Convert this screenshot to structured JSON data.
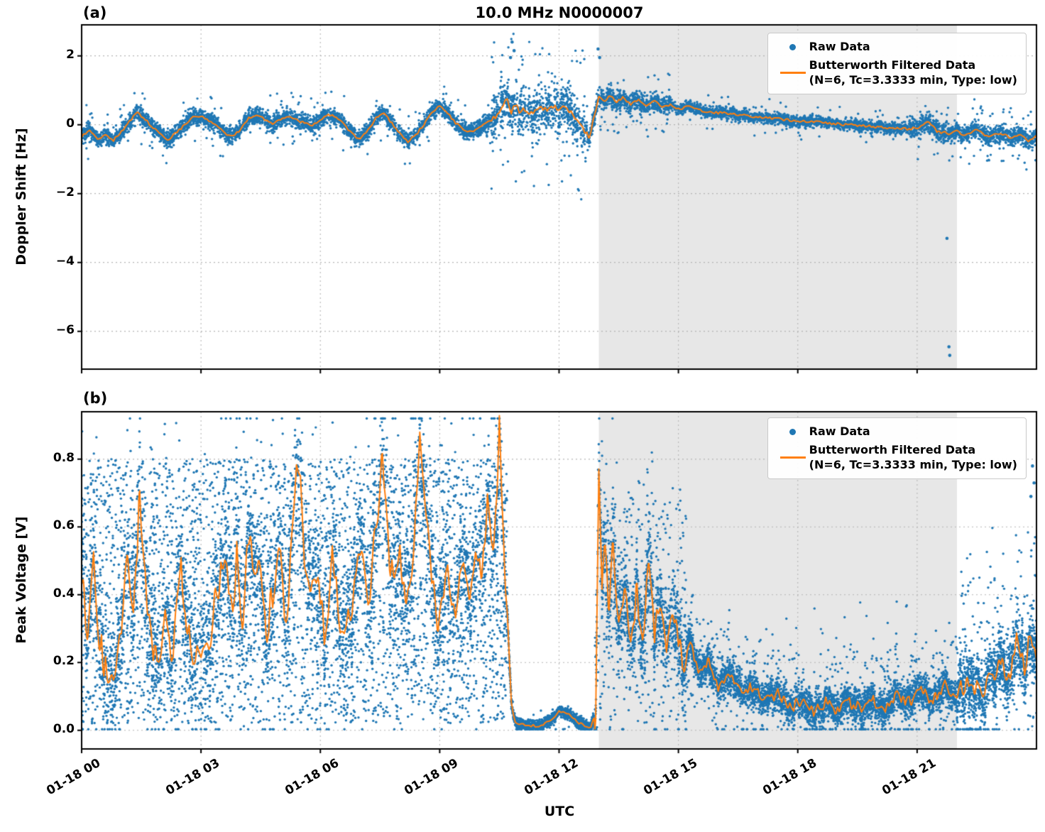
{
  "figure": {
    "title": "10.0 MHz N0000007",
    "xlabel": "UTC",
    "panel_a_label": "(a)",
    "panel_b_label": "(b)",
    "legend": {
      "raw_label": "Raw Data",
      "filtered_label": "Butterworth Filtered Data",
      "filtered_sublabel": "(N=6, Tc=3.3333 min, Type: low)"
    },
    "colors": {
      "raw": "#1f77b4",
      "filtered": "#ff7f0e",
      "shade": "#e7e7e7",
      "grid": "#b5b5b5",
      "spine": "#000000"
    }
  },
  "chart_data": [
    {
      "id": "doppler",
      "type": "scatter",
      "panel": "(a)",
      "title": "10.0 MHz N0000007",
      "ylabel": "Doppler Shift [Hz]",
      "ylim": [
        -7.1,
        2.9
      ],
      "raw_value_range": [
        -7.0,
        2.82
      ],
      "yticks": {
        "values": [
          2,
          0,
          -2,
          -4,
          -6
        ],
        "labels": [
          "2",
          "0",
          "−2",
          "−4",
          "−6"
        ]
      },
      "xlim_hours": [
        0,
        24
      ],
      "xticks": {
        "hours": [
          0,
          3,
          6,
          9,
          12,
          15,
          18,
          21
        ],
        "labels": [
          "01-18 00",
          "01-18 03",
          "01-18 06",
          "01-18 09",
          "01-18 12",
          "01-18 15",
          "01-18 18",
          "01-18 21"
        ]
      },
      "shaded_region_hours": [
        13,
        22
      ],
      "series": [
        {
          "name": "Raw Data",
          "type": "scatter",
          "color": "#1f77b4"
        },
        {
          "name": "Butterworth Filtered Data (N=6, Tc=3.3333 min, Type: low)",
          "type": "line",
          "color": "#ff7f0e"
        }
      ],
      "filtered_keypoints": [
        [
          0,
          -0.35
        ],
        [
          0.2,
          -0.15
        ],
        [
          0.4,
          -0.4
        ],
        [
          0.6,
          -0.3
        ],
        [
          0.8,
          -0.45
        ],
        [
          1.0,
          -0.2
        ],
        [
          1.2,
          0.1
        ],
        [
          1.4,
          0.35
        ],
        [
          1.6,
          0.15
        ],
        [
          1.8,
          -0.1
        ],
        [
          2.0,
          -0.3
        ],
        [
          2.2,
          -0.45
        ],
        [
          2.4,
          -0.2
        ],
        [
          2.6,
          0.0
        ],
        [
          2.8,
          0.2
        ],
        [
          3.0,
          0.25
        ],
        [
          3.2,
          0.1
        ],
        [
          3.4,
          -0.05
        ],
        [
          3.6,
          -0.25
        ],
        [
          3.8,
          -0.35
        ],
        [
          4.0,
          -0.15
        ],
        [
          4.2,
          0.2
        ],
        [
          4.4,
          0.3
        ],
        [
          4.6,
          0.15
        ],
        [
          4.8,
          0.05
        ],
        [
          5.0,
          0.15
        ],
        [
          5.2,
          0.25
        ],
        [
          5.4,
          0.15
        ],
        [
          5.6,
          0.05
        ],
        [
          5.8,
          0.0
        ],
        [
          6.0,
          0.15
        ],
        [
          6.2,
          0.3
        ],
        [
          6.4,
          0.2
        ],
        [
          6.6,
          0.0
        ],
        [
          6.8,
          -0.25
        ],
        [
          7.0,
          -0.45
        ],
        [
          7.2,
          -0.15
        ],
        [
          7.4,
          0.2
        ],
        [
          7.6,
          0.3
        ],
        [
          7.8,
          0.05
        ],
        [
          8.0,
          -0.25
        ],
        [
          8.2,
          -0.5
        ],
        [
          8.4,
          -0.3
        ],
        [
          8.6,
          0.0
        ],
        [
          8.8,
          0.35
        ],
        [
          9.0,
          0.55
        ],
        [
          9.2,
          0.35
        ],
        [
          9.4,
          0.05
        ],
        [
          9.6,
          -0.15
        ],
        [
          9.8,
          -0.2
        ],
        [
          10.0,
          -0.1
        ],
        [
          10.2,
          0.05
        ],
        [
          10.4,
          0.2
        ],
        [
          10.55,
          0.45
        ],
        [
          10.7,
          0.75
        ],
        [
          10.8,
          0.35
        ],
        [
          10.9,
          0.65
        ],
        [
          11.0,
          0.3
        ],
        [
          11.1,
          0.55
        ],
        [
          11.25,
          0.2
        ],
        [
          11.4,
          0.45
        ],
        [
          11.55,
          0.6
        ],
        [
          11.7,
          0.35
        ],
        [
          11.85,
          0.55
        ],
        [
          12.0,
          0.4
        ],
        [
          12.15,
          0.55
        ],
        [
          12.3,
          0.35
        ],
        [
          12.45,
          0.15
        ],
        [
          12.6,
          -0.1
        ],
        [
          12.75,
          -0.35
        ],
        [
          12.9,
          0.3
        ],
        [
          13.0,
          0.85
        ],
        [
          13.15,
          0.7
        ],
        [
          13.3,
          0.85
        ],
        [
          13.45,
          0.65
        ],
        [
          13.6,
          0.8
        ],
        [
          13.8,
          0.6
        ],
        [
          14.0,
          0.7
        ],
        [
          14.2,
          0.55
        ],
        [
          14.4,
          0.7
        ],
        [
          14.6,
          0.5
        ],
        [
          14.8,
          0.6
        ],
        [
          15.0,
          0.45
        ],
        [
          15.3,
          0.55
        ],
        [
          15.6,
          0.4
        ],
        [
          16.0,
          0.35
        ],
        [
          16.4,
          0.3
        ],
        [
          16.8,
          0.25
        ],
        [
          17.2,
          0.2
        ],
        [
          17.6,
          0.15
        ],
        [
          18.0,
          0.12
        ],
        [
          18.4,
          0.08
        ],
        [
          18.8,
          0.05
        ],
        [
          19.2,
          0.0
        ],
        [
          19.6,
          -0.03
        ],
        [
          20.0,
          -0.07
        ],
        [
          20.4,
          -0.1
        ],
        [
          20.8,
          -0.13
        ],
        [
          21.1,
          -0.05
        ],
        [
          21.3,
          0.1
        ],
        [
          21.5,
          -0.2
        ],
        [
          21.8,
          -0.25
        ],
        [
          22.0,
          -0.2
        ],
        [
          22.2,
          -0.3
        ],
        [
          22.5,
          -0.15
        ],
        [
          22.8,
          -0.35
        ],
        [
          23.1,
          -0.25
        ],
        [
          23.4,
          -0.4
        ],
        [
          23.6,
          -0.25
        ],
        [
          23.8,
          -0.5
        ],
        [
          24,
          -0.3
        ]
      ],
      "line_wiggle_segments": [
        [
          0,
          10.3,
          0.04
        ],
        [
          10.3,
          12.9,
          0.1
        ],
        [
          12.9,
          24,
          0.04
        ]
      ],
      "raw_noise_segments": [
        [
          0,
          10.3,
          0.26,
          0.04,
          0,
          0,
          0
        ],
        [
          10.3,
          12.7,
          0.7,
          0.12,
          0,
          0,
          0
        ],
        [
          12.7,
          14.8,
          0.3,
          0.06,
          0,
          0,
          0
        ],
        [
          14.8,
          20.8,
          0.17,
          0.04,
          0,
          0,
          0
        ],
        [
          20.8,
          24,
          0.28,
          0.08,
          0,
          0,
          0
        ]
      ],
      "raw_outliers": [
        [
          10.82,
          2.4
        ],
        [
          10.87,
          2.15
        ],
        [
          10.78,
          1.95
        ],
        [
          12.98,
          2.2
        ],
        [
          13.02,
          1.95
        ],
        [
          21.75,
          -3.3
        ],
        [
          21.8,
          -6.45
        ],
        [
          21.82,
          -6.7
        ]
      ],
      "raw_point_count": 9000
    },
    {
      "id": "voltage",
      "type": "scatter",
      "panel": "(b)",
      "title": "",
      "ylabel": "Peak Voltage [V]",
      "ylim": [
        -0.055,
        0.94
      ],
      "raw_value_range": [
        0.003,
        0.92
      ],
      "yticks": {
        "values": [
          0.0,
          0.2,
          0.4,
          0.6,
          0.8
        ],
        "labels": [
          "0.0",
          "0.2",
          "0.4",
          "0.6",
          "0.8"
        ]
      },
      "xlim_hours": [
        0,
        24
      ],
      "xticks": {
        "hours": [
          0,
          3,
          6,
          9,
          12,
          15,
          18,
          21
        ],
        "labels": [
          "01-18 00",
          "01-18 03",
          "01-18 06",
          "01-18 09",
          "01-18 12",
          "01-18 15",
          "01-18 18",
          "01-18 21"
        ]
      },
      "shaded_region_hours": [
        13,
        22
      ],
      "series": [
        {
          "name": "Raw Data",
          "type": "scatter",
          "color": "#1f77b4"
        },
        {
          "name": "Butterworth Filtered Data (N=6, Tc=3.3333 min, Type: low)",
          "type": "line",
          "color": "#ff7f0e"
        }
      ],
      "filtered_keypoints": [
        [
          0,
          0.45
        ],
        [
          0.15,
          0.3
        ],
        [
          0.3,
          0.5
        ],
        [
          0.45,
          0.25
        ],
        [
          0.6,
          0.18
        ],
        [
          0.8,
          0.12
        ],
        [
          1.0,
          0.3
        ],
        [
          1.15,
          0.55
        ],
        [
          1.3,
          0.3
        ],
        [
          1.45,
          0.7
        ],
        [
          1.6,
          0.45
        ],
        [
          1.75,
          0.25
        ],
        [
          1.9,
          0.18
        ],
        [
          2.1,
          0.3
        ],
        [
          2.3,
          0.22
        ],
        [
          2.5,
          0.5
        ],
        [
          2.65,
          0.28
        ],
        [
          2.8,
          0.22
        ],
        [
          3.0,
          0.18
        ],
        [
          3.2,
          0.28
        ],
        [
          3.4,
          0.4
        ],
        [
          3.6,
          0.55
        ],
        [
          3.75,
          0.35
        ],
        [
          3.9,
          0.5
        ],
        [
          4.05,
          0.3
        ],
        [
          4.2,
          0.6
        ],
        [
          4.35,
          0.4
        ],
        [
          4.5,
          0.52
        ],
        [
          4.65,
          0.3
        ],
        [
          4.8,
          0.42
        ],
        [
          5.0,
          0.55
        ],
        [
          5.15,
          0.3
        ],
        [
          5.3,
          0.65
        ],
        [
          5.45,
          0.8
        ],
        [
          5.6,
          0.5
        ],
        [
          5.75,
          0.35
        ],
        [
          5.9,
          0.45
        ],
        [
          6.1,
          0.3
        ],
        [
          6.3,
          0.5
        ],
        [
          6.45,
          0.35
        ],
        [
          6.6,
          0.25
        ],
        [
          6.8,
          0.4
        ],
        [
          7.0,
          0.55
        ],
        [
          7.2,
          0.35
        ],
        [
          7.4,
          0.6
        ],
        [
          7.55,
          0.78
        ],
        [
          7.7,
          0.55
        ],
        [
          7.85,
          0.4
        ],
        [
          8.0,
          0.55
        ],
        [
          8.15,
          0.35
        ],
        [
          8.3,
          0.5
        ],
        [
          8.5,
          0.82
        ],
        [
          8.65,
          0.6
        ],
        [
          8.8,
          0.45
        ],
        [
          9.0,
          0.3
        ],
        [
          9.2,
          0.45
        ],
        [
          9.4,
          0.32
        ],
        [
          9.6,
          0.5
        ],
        [
          9.75,
          0.38
        ],
        [
          9.9,
          0.55
        ],
        [
          10.05,
          0.42
        ],
        [
          10.2,
          0.65
        ],
        [
          10.35,
          0.5
        ],
        [
          10.5,
          0.88
        ],
        [
          10.6,
          0.6
        ],
        [
          10.7,
          0.35
        ],
        [
          10.8,
          0.08
        ],
        [
          10.9,
          0.02
        ],
        [
          11.2,
          0.015
        ],
        [
          11.5,
          0.012
        ],
        [
          11.8,
          0.03
        ],
        [
          12.0,
          0.055
        ],
        [
          12.2,
          0.05
        ],
        [
          12.4,
          0.03
        ],
        [
          12.6,
          0.015
        ],
        [
          12.8,
          0.01
        ],
        [
          12.92,
          0.05
        ],
        [
          13.0,
          0.75
        ],
        [
          13.08,
          0.4
        ],
        [
          13.15,
          0.6
        ],
        [
          13.25,
          0.35
        ],
        [
          13.35,
          0.55
        ],
        [
          13.5,
          0.3
        ],
        [
          13.65,
          0.45
        ],
        [
          13.8,
          0.25
        ],
        [
          13.95,
          0.42
        ],
        [
          14.1,
          0.28
        ],
        [
          14.25,
          0.48
        ],
        [
          14.4,
          0.3
        ],
        [
          14.55,
          0.4
        ],
        [
          14.7,
          0.24
        ],
        [
          14.9,
          0.32
        ],
        [
          15.1,
          0.2
        ],
        [
          15.3,
          0.26
        ],
        [
          15.5,
          0.16
        ],
        [
          15.75,
          0.2
        ],
        [
          16.0,
          0.13
        ],
        [
          16.3,
          0.16
        ],
        [
          16.6,
          0.1
        ],
        [
          16.9,
          0.13
        ],
        [
          17.2,
          0.09
        ],
        [
          17.5,
          0.11
        ],
        [
          17.8,
          0.07
        ],
        [
          18.1,
          0.09
        ],
        [
          18.4,
          0.06
        ],
        [
          18.7,
          0.08
        ],
        [
          19.0,
          0.06
        ],
        [
          19.3,
          0.08
        ],
        [
          19.6,
          0.06
        ],
        [
          19.9,
          0.09
        ],
        [
          20.2,
          0.07
        ],
        [
          20.5,
          0.1
        ],
        [
          20.8,
          0.08
        ],
        [
          21.1,
          0.11
        ],
        [
          21.4,
          0.09
        ],
        [
          21.7,
          0.13
        ],
        [
          22.0,
          0.1
        ],
        [
          22.3,
          0.15
        ],
        [
          22.6,
          0.11
        ],
        [
          22.9,
          0.16
        ],
        [
          23.1,
          0.22
        ],
        [
          23.3,
          0.14
        ],
        [
          23.5,
          0.28
        ],
        [
          23.7,
          0.18
        ],
        [
          23.85,
          0.3
        ],
        [
          24,
          0.22
        ]
      ],
      "line_wiggle_segments": [
        [
          0,
          10.7,
          0.06
        ],
        [
          10.7,
          12.88,
          0.004
        ],
        [
          12.88,
          15.2,
          0.05
        ],
        [
          15.2,
          22,
          0.02
        ],
        [
          22,
          24,
          0.03
        ]
      ],
      "raw_noise_segments": [
        [
          0,
          10.7,
          0.18,
          0.05,
          0.45,
          0.02,
          0.8
        ],
        [
          10.7,
          12.9,
          0.018,
          0.02,
          0,
          0,
          0
        ],
        [
          12.9,
          15.2,
          0.14,
          0.1,
          0.15,
          0.03,
          0.68
        ],
        [
          15.2,
          22,
          0.05,
          0.1,
          0.02,
          0.02,
          0.38
        ],
        [
          22,
          24,
          0.1,
          0.1,
          0.04,
          0.02,
          0.6
        ]
      ],
      "raw_outliers": [
        [
          23.9,
          0.78
        ],
        [
          23.94,
          0.73
        ],
        [
          23.86,
          0.69
        ]
      ],
      "raw_point_count": 16000
    }
  ]
}
